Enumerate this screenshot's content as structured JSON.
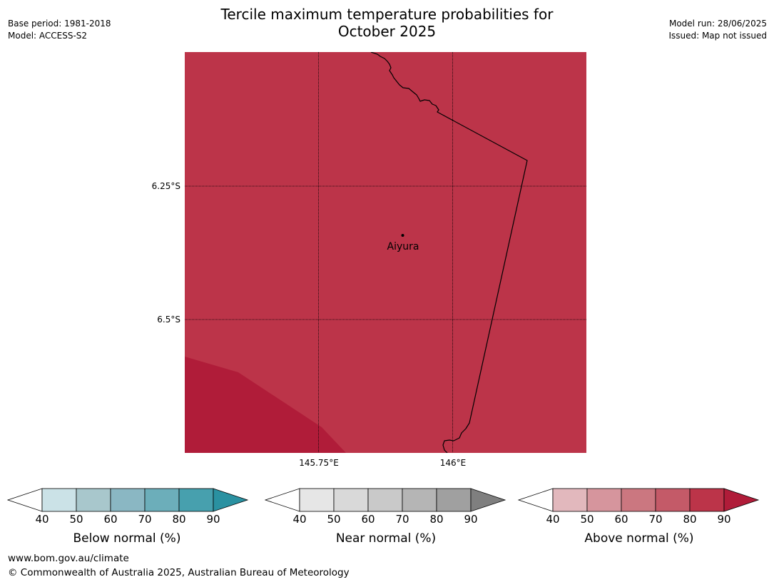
{
  "header": {
    "base_period": "Base period: 1981-2018",
    "model": "Model: ACCESS-S2",
    "model_run": "Model run: 28/06/2025",
    "issued": "Issued: Map not issued"
  },
  "title": {
    "line1": "Tercile maximum temperature probabilities for",
    "line2": "October 2025"
  },
  "map": {
    "fill_main": "#bc3449",
    "fill_high": "#b01c39",
    "place_label": "Aiyura",
    "lat_labels": [
      "6.25°S",
      "6.5°S"
    ],
    "lon_labels": [
      "145.75°E",
      "146°E"
    ]
  },
  "colorbars": [
    {
      "title": "Below normal (%)",
      "ticks": [
        "40",
        "50",
        "60",
        "70",
        "80",
        "90"
      ],
      "low_color": "#ffffff",
      "colors": [
        "#cbe2e7",
        "#a8c7cc",
        "#8ab7c3",
        "#6caeba",
        "#47a0ae"
      ],
      "high_color": "#2a91a1"
    },
    {
      "title": "Near normal (%)",
      "ticks": [
        "40",
        "50",
        "60",
        "70",
        "80",
        "90"
      ],
      "low_color": "#ffffff",
      "colors": [
        "#e6e6e6",
        "#d9d9d9",
        "#c9c9c9",
        "#b5b5b5",
        "#a0a0a0"
      ],
      "high_color": "#7f7f7f"
    },
    {
      "title": "Above normal (%)",
      "ticks": [
        "40",
        "50",
        "60",
        "70",
        "80",
        "90"
      ],
      "low_color": "#ffffff",
      "colors": [
        "#e2b8bd",
        "#d6959d",
        "#cb7780",
        "#c45a68",
        "#bc3449"
      ],
      "high_color": "#b01c39"
    }
  ],
  "footer": {
    "url": "www.bom.gov.au/climate",
    "copyright": "© Commonwealth of Australia 2025, Australian Bureau of Meteorology"
  }
}
